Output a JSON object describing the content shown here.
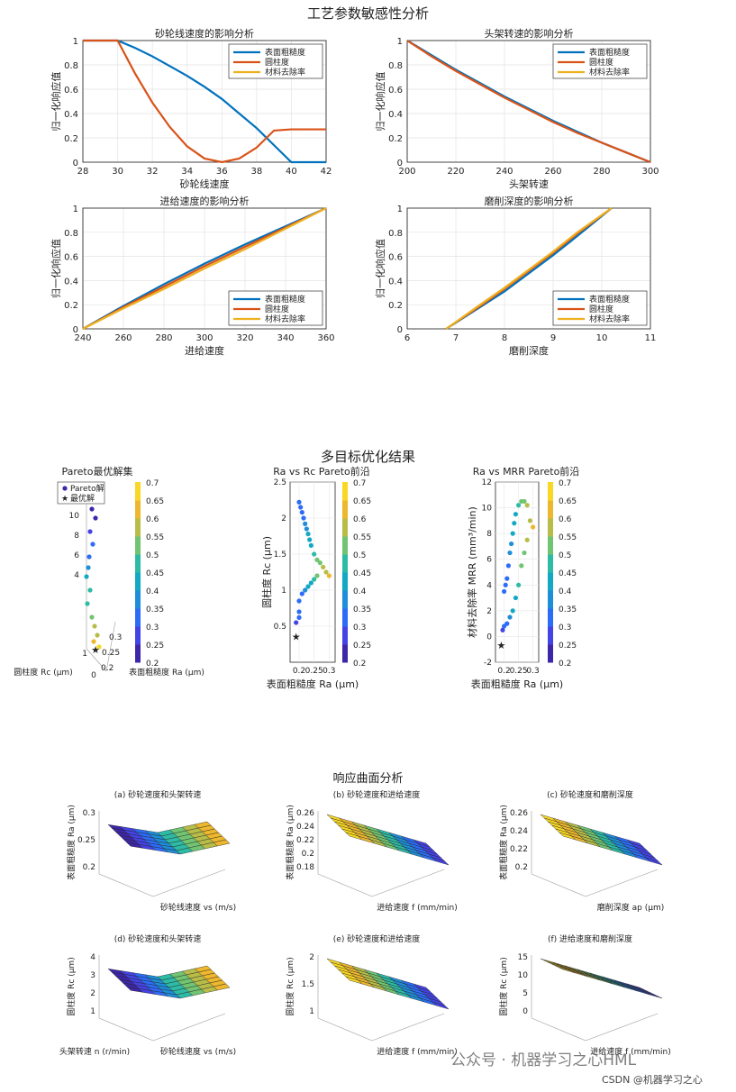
{
  "figure1": {
    "title": "工艺参数敏感性分析",
    "legend": [
      "表面粗糙度",
      "圆柱度",
      "材料去除率"
    ],
    "colors": [
      "#0072BD",
      "#D95319",
      "#EDB120"
    ],
    "ylabel": "归一化响应值"
  },
  "figure2": {
    "title": "多目标优化结果",
    "colorbar_ticks": [
      "0.7",
      "0.65",
      "0.6",
      "0.55",
      "0.5",
      "0.45",
      "0.4",
      "0.35",
      "0.3",
      "0.25",
      "0.2"
    ],
    "legend": [
      "Pareto解",
      "最优解"
    ]
  },
  "figure3": {
    "title": "响应曲面分析"
  },
  "watermark": {
    "main": "公众号 · 机器学习之心HML",
    "csdn": "CSDN @机器学习之心"
  },
  "chart_data": [
    {
      "type": "line",
      "title": "砂轮线速度的影响分析",
      "xlabel": "砂轮线速度",
      "ylabel": "归一化响应值",
      "xlim": [
        28,
        42
      ],
      "ylim": [
        0,
        1
      ],
      "xticks": [
        28,
        30,
        32,
        34,
        36,
        38,
        40,
        42
      ],
      "yticks": [
        0,
        0.2,
        0.4,
        0.6,
        0.8,
        1
      ],
      "x": [
        28,
        29,
        30,
        31,
        32,
        33,
        34,
        35,
        36,
        37,
        38,
        39,
        40,
        41,
        42
      ],
      "series": [
        {
          "name": "表面粗糙度",
          "values": [
            1,
            1,
            1,
            0.94,
            0.87,
            0.79,
            0.71,
            0.62,
            0.52,
            0.4,
            0.28,
            0.14,
            0,
            0,
            0
          ]
        },
        {
          "name": "圆柱度",
          "values": [
            1,
            1,
            1,
            0.73,
            0.49,
            0.29,
            0.13,
            0.03,
            0,
            0.03,
            0.12,
            0.26,
            0.27,
            0.27,
            0.27
          ]
        },
        {
          "name": "材料去除率",
          "values": [
            null,
            null,
            null,
            null,
            null,
            null,
            null,
            null,
            null,
            null,
            null,
            null,
            null,
            null,
            null
          ]
        }
      ],
      "legend_position": "top-right",
      "grid": true
    },
    {
      "type": "line",
      "title": "头架转速的影响分析",
      "xlabel": "头架转速",
      "ylabel": "归一化响应值",
      "xlim": [
        200,
        300
      ],
      "ylim": [
        0,
        1
      ],
      "xticks": [
        200,
        220,
        240,
        260,
        280,
        300
      ],
      "yticks": [
        0,
        0.2,
        0.4,
        0.6,
        0.8,
        1
      ],
      "x": [
        200,
        210,
        220,
        230,
        240,
        250,
        260,
        270,
        280,
        290,
        300
      ],
      "series": [
        {
          "name": "表面粗糙度",
          "values": [
            1,
            0.88,
            0.76,
            0.65,
            0.54,
            0.44,
            0.34,
            0.25,
            0.16,
            0.08,
            0
          ]
        },
        {
          "name": "圆柱度",
          "values": [
            1,
            0.87,
            0.75,
            0.64,
            0.53,
            0.43,
            0.33,
            0.24,
            0.16,
            0.08,
            0
          ]
        },
        {
          "name": "材料去除率",
          "values": [
            null,
            null,
            null,
            null,
            null,
            null,
            null,
            null,
            null,
            null,
            null
          ]
        }
      ],
      "legend_position": "top-right",
      "grid": true
    },
    {
      "type": "line",
      "title": "进给速度的影响分析",
      "xlabel": "进给速度",
      "ylabel": "归一化响应值",
      "xlim": [
        240,
        360
      ],
      "ylim": [
        0,
        1
      ],
      "xticks": [
        240,
        260,
        280,
        300,
        320,
        340,
        360
      ],
      "yticks": [
        0,
        0.2,
        0.4,
        0.6,
        0.8,
        1
      ],
      "x": [
        240,
        260,
        280,
        300,
        320,
        340,
        360
      ],
      "series": [
        {
          "name": "表面粗糙度",
          "values": [
            0,
            0.19,
            0.37,
            0.54,
            0.7,
            0.85,
            1
          ]
        },
        {
          "name": "圆柱度",
          "values": [
            0,
            0.18,
            0.35,
            0.52,
            0.68,
            0.84,
            1
          ]
        },
        {
          "name": "材料去除率",
          "values": [
            0,
            0.17,
            0.33,
            0.5,
            0.66,
            0.83,
            1
          ]
        }
      ],
      "legend_position": "bottom-right",
      "grid": true
    },
    {
      "type": "line",
      "title": "磨削深度的影响分析",
      "xlabel": "磨削深度",
      "ylabel": "归一化响应值",
      "xlim": [
        6,
        11
      ],
      "ylim": [
        0,
        1
      ],
      "xticks": [
        6,
        7,
        8,
        9,
        10,
        11
      ],
      "yticks": [
        0,
        0.2,
        0.4,
        0.6,
        0.8,
        1
      ],
      "x": [
        6.8,
        7.5,
        8,
        8.5,
        9,
        9.5,
        10.2
      ],
      "series": [
        {
          "name": "表面粗糙度",
          "values": [
            0,
            0.18,
            0.31,
            0.46,
            0.61,
            0.77,
            1
          ]
        },
        {
          "name": "圆柱度",
          "values": [
            0,
            0.19,
            0.33,
            0.48,
            0.63,
            0.79,
            1
          ]
        },
        {
          "name": "材料去除率",
          "values": [
            0,
            0.2,
            0.34,
            0.49,
            0.64,
            0.8,
            1
          ]
        }
      ],
      "legend_position": "bottom-right",
      "grid": true
    },
    {
      "type": "scatter",
      "title": "Ra vs Rc Pareto前沿",
      "xlabel": "表面粗糙度 Ra (μm)",
      "ylabel": "圆柱度 Rc (μm)",
      "xlim": [
        0.17,
        0.32
      ],
      "ylim": [
        0,
        2.5
      ],
      "xticks": [
        0.2,
        0.25,
        0.3
      ],
      "yticks": [
        0.5,
        1,
        1.5,
        2,
        2.5
      ],
      "points": [
        [
          0.2,
          2.22
        ],
        [
          0.205,
          2.15
        ],
        [
          0.21,
          2.08
        ],
        [
          0.215,
          2.0
        ],
        [
          0.22,
          1.92
        ],
        [
          0.225,
          1.85
        ],
        [
          0.23,
          1.78
        ],
        [
          0.235,
          1.7
        ],
        [
          0.24,
          1.62
        ],
        [
          0.25,
          1.5
        ],
        [
          0.26,
          1.42
        ],
        [
          0.27,
          1.38
        ],
        [
          0.28,
          1.32
        ],
        [
          0.29,
          1.25
        ],
        [
          0.3,
          1.2
        ],
        [
          0.26,
          1.2
        ],
        [
          0.25,
          1.15
        ],
        [
          0.24,
          1.1
        ],
        [
          0.23,
          1.05
        ],
        [
          0.22,
          1.0
        ],
        [
          0.21,
          0.95
        ],
        [
          0.2,
          0.85
        ],
        [
          0.2,
          0.7
        ],
        [
          0.2,
          0.62
        ],
        [
          0.19,
          0.55
        ]
      ],
      "optimum": [
        0.19,
        0.37
      ],
      "colorbar_range": [
        0.2,
        0.7
      ]
    },
    {
      "type": "scatter",
      "title": "Ra vs MRR Pareto前沿",
      "xlabel": "表面粗糙度 Ra (μm)",
      "ylabel": "材料去除率 MRR (mm³/min)",
      "xlim": [
        0.17,
        0.32
      ],
      "ylim": [
        -2,
        12
      ],
      "xticks": [
        0.2,
        0.25,
        0.3
      ],
      "yticks": [
        -2,
        0,
        2,
        4,
        6,
        8,
        10,
        12
      ],
      "points": [
        [
          0.2,
          3.5
        ],
        [
          0.205,
          4.0
        ],
        [
          0.21,
          4.5
        ],
        [
          0.215,
          5.5
        ],
        [
          0.22,
          6.5
        ],
        [
          0.225,
          7.2
        ],
        [
          0.23,
          8.0
        ],
        [
          0.235,
          8.8
        ],
        [
          0.24,
          9.5
        ],
        [
          0.25,
          10.2
        ],
        [
          0.26,
          10.5
        ],
        [
          0.27,
          10.5
        ],
        [
          0.28,
          10.2
        ],
        [
          0.29,
          9.0
        ],
        [
          0.3,
          8.5
        ],
        [
          0.28,
          7.5
        ],
        [
          0.27,
          6.5
        ],
        [
          0.26,
          5.5
        ],
        [
          0.25,
          4.0
        ],
        [
          0.24,
          3.0
        ],
        [
          0.23,
          2.0
        ],
        [
          0.22,
          1.5
        ],
        [
          0.21,
          1.0
        ],
        [
          0.2,
          0.8
        ],
        [
          0.195,
          0.5
        ]
      ],
      "optimum": [
        0.19,
        -0.6
      ],
      "colorbar_range": [
        0.2,
        0.7
      ]
    }
  ]
}
